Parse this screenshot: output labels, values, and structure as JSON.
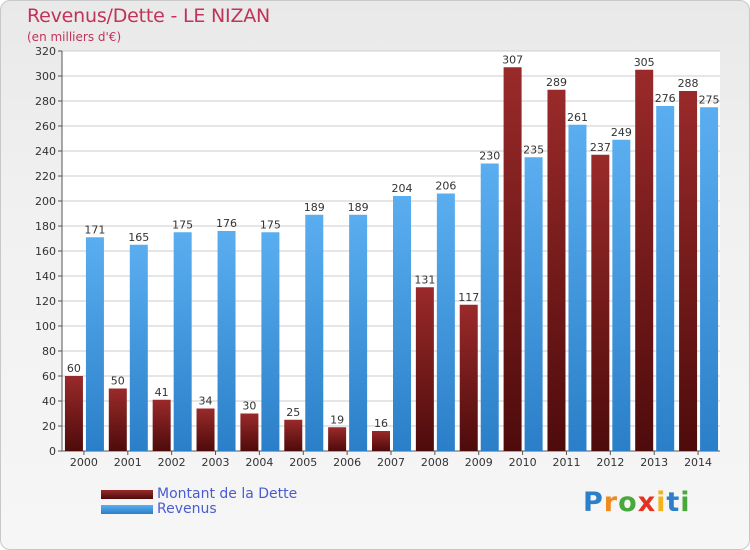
{
  "header": {
    "title": "Revenus/Dette - LE NIZAN",
    "subtitle": "(en milliers d'€)"
  },
  "legend": {
    "debt_label": "Montant de la Dette",
    "revenue_label": "Revenus"
  },
  "logo": {
    "text": [
      "P",
      "r",
      "o",
      "x",
      "i",
      "t",
      "i"
    ],
    "colors": [
      "#2c7fc9",
      "#f08a1e",
      "#49a83a",
      "#e3321f",
      "#f2b41a",
      "#2c7fc9",
      "#49a83a"
    ]
  },
  "colors": {
    "debt_top": "#9a2a2a",
    "debt_bottom": "#4e0b0b",
    "revenue_top": "#5aaef0",
    "revenue_bottom": "#2a7fc8",
    "grid": "#cccccc"
  },
  "chart_data": {
    "type": "bar",
    "title": "Revenus/Dette - LE NIZAN",
    "subtitle": "(en milliers d'€)",
    "categories": [
      "2000",
      "2001",
      "2002",
      "2003",
      "2004",
      "2005",
      "2006",
      "2007",
      "2008",
      "2009",
      "2010",
      "2011",
      "2012",
      "2013",
      "2014"
    ],
    "series": [
      {
        "name": "Montant de la Dette",
        "values": [
          60,
          50,
          41,
          34,
          30,
          25,
          19,
          16,
          131,
          117,
          307,
          289,
          237,
          305,
          288
        ]
      },
      {
        "name": "Revenus",
        "values": [
          171,
          165,
          175,
          176,
          175,
          189,
          189,
          204,
          206,
          230,
          235,
          261,
          249,
          276,
          275
        ]
      }
    ],
    "ylim": [
      0,
      320
    ],
    "ytick_step": 20,
    "grid": true,
    "legend_position": "bottom-left"
  }
}
